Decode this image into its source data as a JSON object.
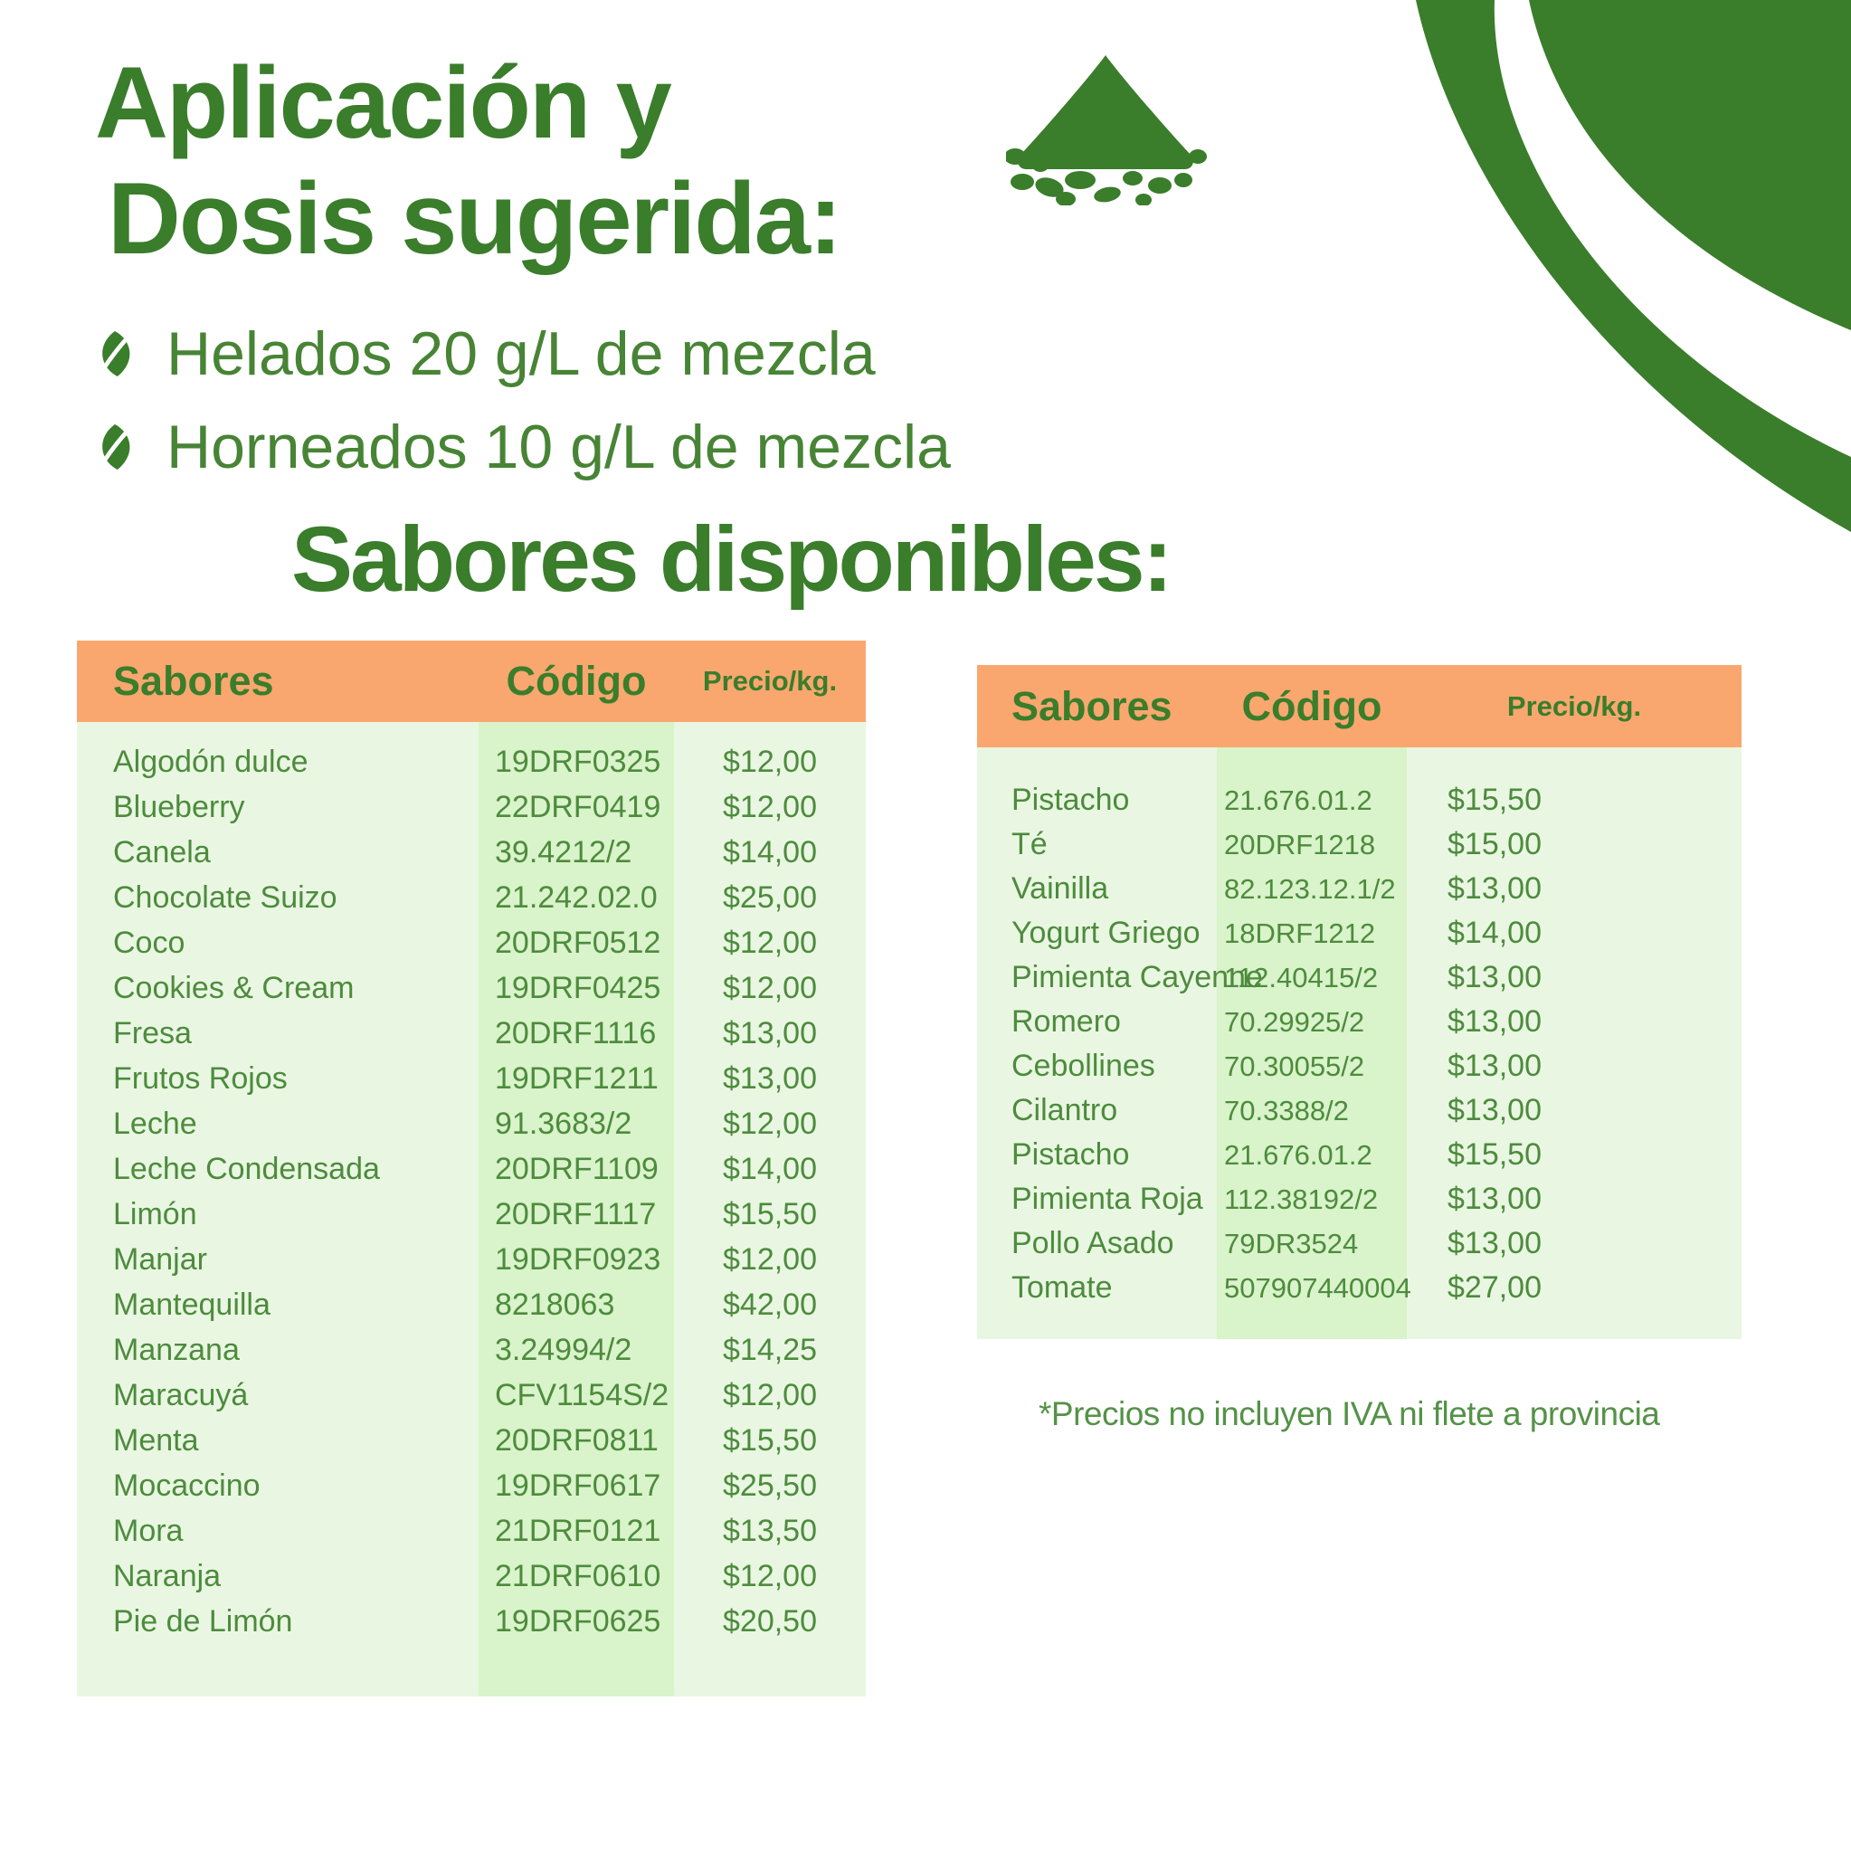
{
  "header": {
    "title_line1": "Aplicación y",
    "title_line2": "Dosis sugerida:",
    "bullets": [
      "Helados 20 g/L de mezcla",
      "Horneados 10 g/L de mezcla"
    ],
    "section_heading": "Sabores disponibles:"
  },
  "tables": {
    "left": {
      "headers": [
        "Sabores",
        "Código",
        "Precio/kg."
      ],
      "rows": [
        {
          "flavor": "Algodón dulce",
          "code": "19DRF0325",
          "price": "$12,00"
        },
        {
          "flavor": "Blueberry",
          "code": "22DRF0419",
          "price": "$12,00"
        },
        {
          "flavor": "Canela",
          "code": "39.4212/2",
          "price": "$14,00"
        },
        {
          "flavor": "Chocolate Suizo",
          "code": "21.242.02.0",
          "price": "$25,00"
        },
        {
          "flavor": "Coco",
          "code": "20DRF0512",
          "price": "$12,00"
        },
        {
          "flavor": "Cookies & Cream",
          "code": "19DRF0425",
          "price": "$12,00"
        },
        {
          "flavor": "Fresa",
          "code": "20DRF1116",
          "price": "$13,00"
        },
        {
          "flavor": "Frutos Rojos",
          "code": "19DRF1211",
          "price": "$13,00"
        },
        {
          "flavor": "Leche",
          "code": "91.3683/2",
          "price": "$12,00"
        },
        {
          "flavor": "Leche Condensada",
          "code": "20DRF1109",
          "price": "$14,00"
        },
        {
          "flavor": "Limón",
          "code": "20DRF1117",
          "price": "$15,50"
        },
        {
          "flavor": "Manjar",
          "code": "19DRF0923",
          "price": "$12,00"
        },
        {
          "flavor": "Mantequilla",
          "code": "8218063",
          "price": "$42,00"
        },
        {
          "flavor": "Manzana",
          "code": "3.24994/2",
          "price": "$14,25"
        },
        {
          "flavor": "Maracuyá",
          "code": "CFV1154S/2",
          "price": "$12,00"
        },
        {
          "flavor": "Menta",
          "code": "20DRF0811",
          "price": "$15,50"
        },
        {
          "flavor": "Mocaccino",
          "code": "19DRF0617",
          "price": "$25,50"
        },
        {
          "flavor": "Mora",
          "code": "21DRF0121",
          "price": "$13,50"
        },
        {
          "flavor": "Naranja",
          "code": "21DRF0610",
          "price": "$12,00"
        },
        {
          "flavor": "Pie de Limón",
          "code": "19DRF0625",
          "price": "$20,50"
        }
      ]
    },
    "right": {
      "headers": [
        "Sabores",
        "Código",
        "Precio/kg."
      ],
      "rows": [
        {
          "flavor": "Pistacho",
          "code": "21.676.01.2",
          "price": "$15,50"
        },
        {
          "flavor": "Té",
          "code": "20DRF1218",
          "price": "$15,00"
        },
        {
          "flavor": "Vainilla",
          "code": "82.123.12.1/2",
          "price": "$13,00"
        },
        {
          "flavor": "Yogurt Griego",
          "code": "18DRF1212",
          "price": "$14,00"
        },
        {
          "flavor": "Pimienta Cayenne",
          "code": "112.40415/2",
          "price": "$13,00"
        },
        {
          "flavor": "Romero",
          "code": "70.29925/2",
          "price": "$13,00"
        },
        {
          "flavor": "Cebollines",
          "code": "70.30055/2",
          "price": "$13,00"
        },
        {
          "flavor": "Cilantro",
          "code": "70.3388/2",
          "price": "$13,00"
        },
        {
          "flavor": "Pistacho",
          "code": "21.676.01.2",
          "price": "$15,50"
        },
        {
          "flavor": "Pimienta Roja",
          "code": "112.38192/2",
          "price": "$13,00"
        },
        {
          "flavor": "Pollo Asado",
          "code": "79DR3524",
          "price": "$13,00"
        },
        {
          "flavor": "Tomate",
          "code": "507907440004",
          "price": "$27,00"
        }
      ]
    }
  },
  "footnote": "*Precios no incluyen IVA ni flete a provincia",
  "colors": {
    "green_dark": "#3a7d2b",
    "green_body_text": "#4d8b3d",
    "green_footnote": "#549247",
    "orange_header_bg": "#f9a76f",
    "row_bg": "#e9f7e2",
    "code_column_bg": "#d9f3ca"
  },
  "icons": {
    "powder_pile": "powder-pile-icon",
    "leaf_bullet": "leaf-icon",
    "corner_swoosh": "corner-swoosh-graphic"
  }
}
